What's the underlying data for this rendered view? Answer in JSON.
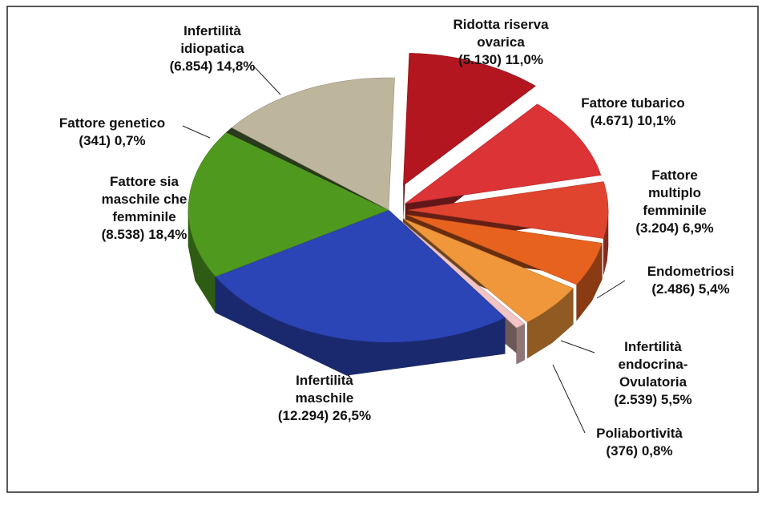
{
  "chart_data": {
    "type": "pie3d",
    "categories": [
      "Ridotta riserva\novarica",
      "Fattore tubarico",
      "Fattore multiplo\nfemminile",
      "Endometriosi",
      "Infertilità\nendocrina-\nOvulatoria",
      "Poliabortività",
      "Infertilità\nmaschile",
      "Fattore sia\nmaschile che\nfemminile",
      "Fattore genetico",
      "Infertilità\nidiopatica"
    ],
    "values": [
      11.0,
      10.1,
      6.9,
      5.4,
      5.5,
      0.8,
      26.5,
      18.4,
      0.7,
      14.8
    ],
    "value_labels": [
      "11,0%",
      "10,1%",
      "6,9%",
      "5,4%",
      "5,5%",
      "0,8%",
      "26,5%",
      "18,4%",
      "0,7%",
      "14,8%"
    ],
    "counts": [
      5130,
      4671,
      3204,
      2486,
      2539,
      376,
      12294,
      8538,
      341,
      6854
    ],
    "count_labels": [
      "(5.130)",
      "(4.671)",
      "(3.204)",
      "(2.486)",
      "(2.539)",
      "(376)",
      "(12.294)",
      "(8.538)",
      "(341)",
      "(6.854)"
    ],
    "colors": [
      "#b3161f",
      "#dc3337",
      "#e0442f",
      "#e7621f",
      "#f0963b",
      "#f2c4c4",
      "#2b44b6",
      "#4f991f",
      "#2a3a1c",
      "#bdb59c"
    ]
  }
}
